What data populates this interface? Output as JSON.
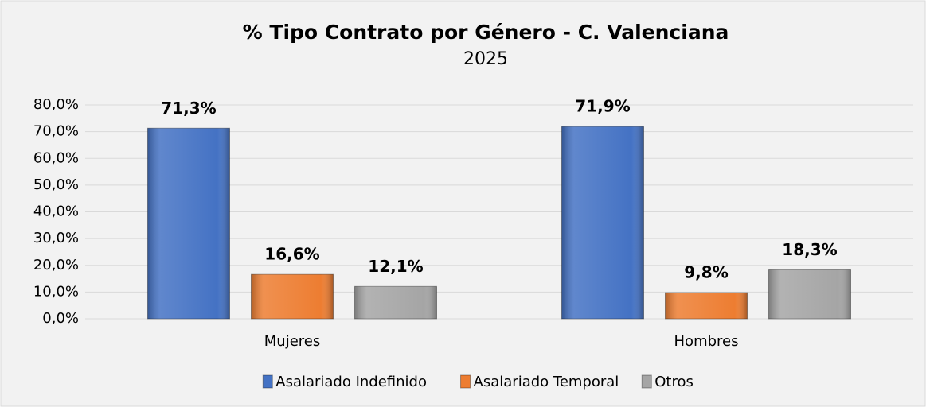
{
  "chart_data": {
    "type": "bar",
    "title": "% Tipo Contrato por Género - C. Valenciana",
    "subtitle": "2025",
    "categories": [
      "Mujeres",
      "Hombres"
    ],
    "series": [
      {
        "name": "Asalariado Indefinido",
        "color": "#4472c4",
        "values": [
          71.3,
          71.9
        ],
        "value_labels": [
          "71,3%",
          "71,9%"
        ]
      },
      {
        "name": "Asalariado Temporal",
        "color": "#ed7d31",
        "values": [
          16.6,
          9.8
        ],
        "value_labels": [
          "16,6%",
          "9,8%"
        ]
      },
      {
        "name": "Otros",
        "color": "#a5a5a5",
        "values": [
          12.1,
          18.3
        ],
        "value_labels": [
          "12,1%",
          "18,3%"
        ]
      }
    ],
    "ylim": [
      0,
      80
    ],
    "yticks": [
      {
        "value": 0,
        "label": "0,0%"
      },
      {
        "value": 10,
        "label": "10,0%"
      },
      {
        "value": 20,
        "label": "20,0%"
      },
      {
        "value": 30,
        "label": "30,0%"
      },
      {
        "value": 40,
        "label": "40,0%"
      },
      {
        "value": 50,
        "label": "50,0%"
      },
      {
        "value": 60,
        "label": "60,0%"
      },
      {
        "value": 70,
        "label": "70,0%"
      },
      {
        "value": 80,
        "label": "80,0%"
      }
    ],
    "grid": true,
    "legend": "bottom"
  }
}
